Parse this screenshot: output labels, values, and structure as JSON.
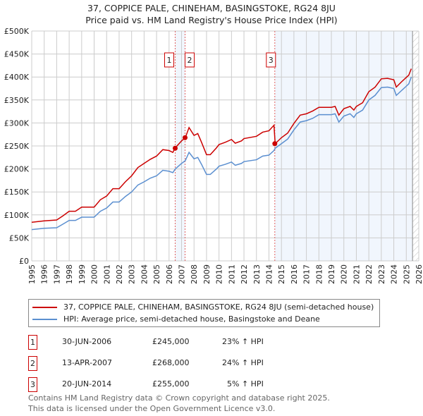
{
  "chart_data": {
    "type": "line",
    "title": "37, COPPICE PALE, CHINEHAM, BASINGSTOKE, RG24 8JU",
    "subtitle": "Price paid vs. HM Land Registry's House Price Index (HPI)",
    "xlim": [
      1995,
      2026
    ],
    "ylim": [
      0,
      500000
    ],
    "x_ticks": [
      "1995",
      "1996",
      "1997",
      "1998",
      "1999",
      "2000",
      "2001",
      "2002",
      "2003",
      "2004",
      "2005",
      "2006",
      "2007",
      "2008",
      "2009",
      "2010",
      "2011",
      "2012",
      "2013",
      "2014",
      "2015",
      "2016",
      "2017",
      "2018",
      "2019",
      "2020",
      "2021",
      "2022",
      "2023",
      "2024",
      "2025",
      "2026"
    ],
    "y_ticks": [
      "£0",
      "£50K",
      "£100K",
      "£150K",
      "£200K",
      "£250K",
      "£300K",
      "£350K",
      "£400K",
      "£450K",
      "£500K"
    ],
    "grid": true,
    "x": [
      1995,
      1996,
      1997,
      1997.5,
      1998,
      1998.5,
      1999,
      2000,
      2000.5,
      2001,
      2001.5,
      2002,
      2002.5,
      2003,
      2003.5,
      2004,
      2004.5,
      2005,
      2005.5,
      2006,
      2006.3,
      2006.5,
      2007,
      2007.3,
      2007.6,
      2008,
      2008.3,
      2008.6,
      2009,
      2009.3,
      2009.8,
      2010,
      2010.5,
      2011,
      2011.3,
      2011.8,
      2012,
      2013,
      2013.5,
      2014,
      2014.4,
      2014.5,
      2015,
      2015.5,
      2016,
      2016.5,
      2017,
      2017.5,
      2018,
      2018.5,
      2019,
      2019.3,
      2019.6,
      2020,
      2020.5,
      2020.8,
      2021,
      2021.5,
      2022,
      2022.5,
      2023,
      2023.5,
      2024,
      2024.2,
      2024.6,
      2025,
      2025.2,
      2025.4
    ],
    "series": [
      {
        "name": "37, COPPICE PALE, CHINEHAM, BASINGSTOKE, RG24 8JU (semi-detached house)",
        "color": "#cc0000",
        "values_k": [
          84,
          87,
          89,
          98,
          108,
          108,
          117,
          117,
          133,
          141,
          157,
          157,
          172,
          185,
          203,
          212,
          221,
          228,
          242,
          240,
          236,
          246,
          261,
          268,
          290,
          273,
          277,
          258,
          231,
          231,
          246,
          253,
          258,
          264,
          256,
          261,
          266,
          271,
          280,
          283,
          295,
          255,
          268,
          278,
          299,
          317,
          320,
          326,
          334,
          334,
          334,
          336,
          317,
          331,
          336,
          328,
          336,
          344,
          368,
          378,
          396,
          397,
          394,
          378,
          389,
          399,
          404,
          418
        ]
      },
      {
        "name": "HPI: Average price, semi-detached house, Basingstoke and Deane",
        "color": "#5b8fd0",
        "values_k": [
          68,
          71,
          72,
          80,
          88,
          88,
          95,
          95,
          108,
          115,
          128,
          128,
          140,
          150,
          165,
          172,
          180,
          185,
          197,
          195,
          192,
          200,
          212,
          218,
          236,
          222,
          225,
          210,
          188,
          188,
          200,
          206,
          210,
          215,
          208,
          212,
          216,
          220,
          228,
          230,
          240,
          245,
          255,
          265,
          285,
          302,
          305,
          310,
          318,
          318,
          318,
          320,
          302,
          315,
          320,
          312,
          320,
          328,
          350,
          360,
          377,
          378,
          375,
          360,
          370,
          380,
          385,
          400
        ]
      }
    ],
    "sales": [
      {
        "label": "1",
        "x": 2006.49,
        "price": 245000,
        "date": "30-JUN-2006",
        "price_text": "£245,000",
        "hpi_text": "23% ↑ HPI"
      },
      {
        "label": "2",
        "x": 2007.28,
        "price": 268000,
        "date": "13-APR-2007",
        "price_text": "£268,000",
        "hpi_text": "24% ↑ HPI"
      },
      {
        "label": "3",
        "x": 2014.47,
        "price": 255000,
        "date": "20-JUN-2014",
        "price_text": "£255,000",
        "hpi_text": "5% ↑ HPI"
      }
    ],
    "shaded_ranges": [
      [
        2006.49,
        2007.28
      ],
      [
        2014.47,
        2025.5
      ]
    ],
    "hatched_from": 2025.5
  },
  "footer": {
    "line1": "Contains HM Land Registry data © Crown copyright and database right 2025.",
    "line2": "This data is licensed under the Open Government Licence v3.0."
  }
}
